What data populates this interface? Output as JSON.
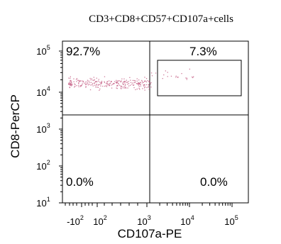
{
  "chart_data": {
    "type": "scatter",
    "title": "CD3+CD8+CD57+CD107a+cells",
    "xlabel": "CD107a-PE",
    "ylabel": "CD8-PerCP",
    "x_scale": "biexponential",
    "y_scale": "log",
    "ylim": [
      10,
      100000
    ],
    "x_ticks": [
      {
        "base": "-10",
        "exp": "2"
      },
      {
        "base": "10",
        "exp": "2"
      },
      {
        "base": "10",
        "exp": "3"
      },
      {
        "base": "10",
        "exp": "4"
      },
      {
        "base": "10",
        "exp": "5"
      }
    ],
    "y_ticks": [
      {
        "base": "10",
        "exp": "1"
      },
      {
        "base": "10",
        "exp": "2"
      },
      {
        "base": "10",
        "exp": "3"
      },
      {
        "base": "10",
        "exp": "4"
      },
      {
        "base": "10",
        "exp": "5"
      }
    ],
    "quadrants": {
      "upper_left": "92.7%",
      "upper_right": "7.3%",
      "lower_left": "0.0%",
      "lower_right": "0.0%"
    },
    "gate": "rectangle",
    "point_color": "#c0507a"
  }
}
